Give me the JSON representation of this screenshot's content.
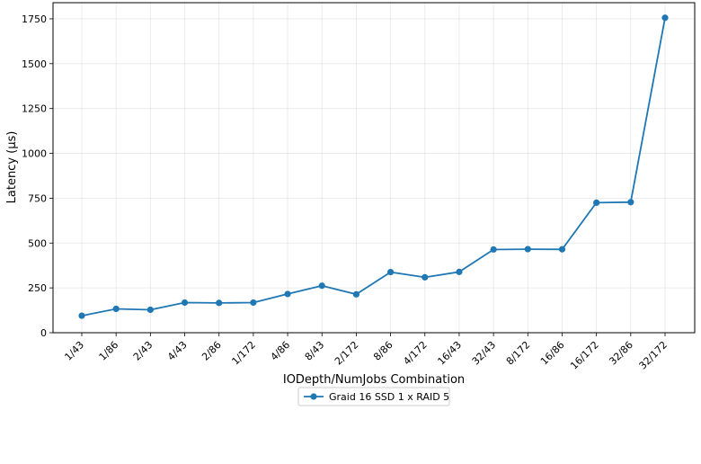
{
  "chart_data": {
    "type": "line",
    "title": "",
    "xlabel": "IODepth/NumJobs Combination",
    "ylabel": "Latency (µs)",
    "categories": [
      "1/43",
      "1/86",
      "2/43",
      "4/43",
      "2/86",
      "1/172",
      "4/86",
      "8/43",
      "2/172",
      "8/86",
      "4/172",
      "16/43",
      "32/43",
      "8/172",
      "16/86",
      "16/172",
      "32/86",
      "32/172"
    ],
    "series": [
      {
        "name": "Graid 16 SSD 1 x RAID 5",
        "color": "#1f77b4",
        "values": [
          95,
          133,
          128,
          168,
          166,
          168,
          216,
          262,
          214,
          338,
          309,
          339,
          464,
          466,
          465,
          725,
          728,
          1756
        ]
      }
    ],
    "ylim": [
      0,
      1840
    ],
    "yticks": [
      0,
      250,
      500,
      750,
      1000,
      1250,
      1500,
      1750
    ],
    "grid": true,
    "legend_position": "below"
  }
}
